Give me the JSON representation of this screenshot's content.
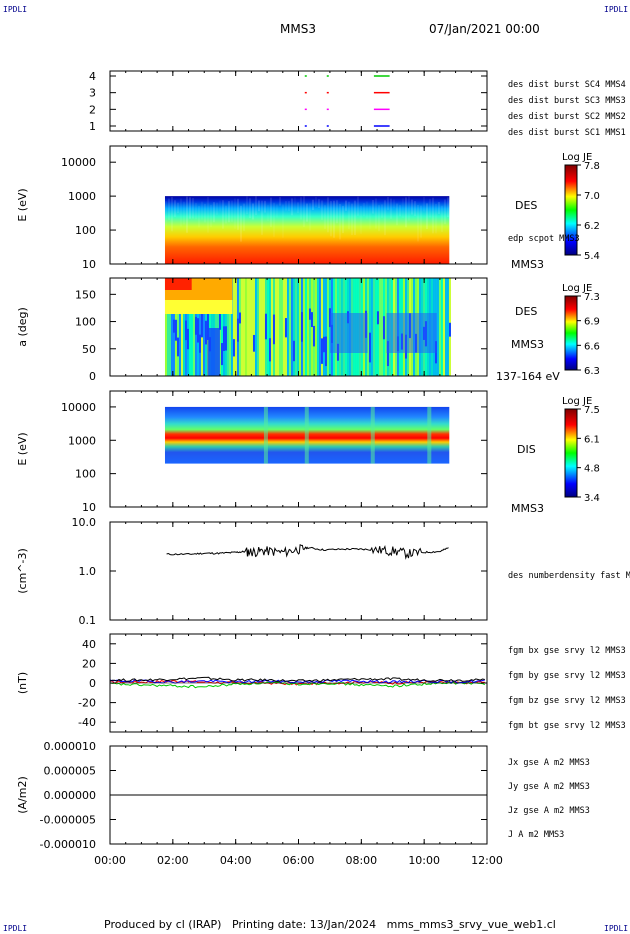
{
  "corner_labels": {
    "top_left": "IPDLI",
    "top_right": "IPDLI",
    "bottom_left": "IPDLI",
    "bottom_right": "IPDLI"
  },
  "header": {
    "spacecraft": "MMS3",
    "date": "07/Jan/2021 00:00"
  },
  "footer": "Produced by cl (IRAP)   Printing date: 13/Jan/2024   mms_mms3_srvy_vue_web1.cl",
  "x_axis": {
    "ticks": [
      "00:00",
      "02:00",
      "04:00",
      "06:00",
      "08:00",
      "10:00",
      "12:00"
    ],
    "range_hours": [
      0,
      12
    ]
  },
  "colors": {
    "red": "#ff0000",
    "green": "#00cc00",
    "blue": "#0000ff",
    "magenta": "#ff00ff",
    "black": "#000000"
  },
  "panels": {
    "burst": {
      "yticks": [
        "1",
        "2",
        "3",
        "4"
      ],
      "legend": [
        {
          "text": "des dist burst SC1 MMS1",
          "color": "#0000ff"
        },
        {
          "text": "des dist burst SC2 MMS2",
          "color": "#ff00ff"
        },
        {
          "text": "des dist burst SC3 MMS3",
          "color": "#ff0000"
        },
        {
          "text": "des dist burst SC4 MMS4",
          "color": "#00cc00"
        }
      ],
      "intervals_hours": [
        [
          6.2,
          6.25
        ],
        [
          6.9,
          6.95
        ],
        [
          8.4,
          8.9
        ]
      ]
    },
    "des_energy": {
      "ylabel": "E (eV)",
      "yticks": [
        "10",
        "100",
        "1000",
        "10000"
      ],
      "label": "DES",
      "label2": "edp scpot MMS3",
      "colorbar": {
        "title": "Log JE",
        "ticks": [
          "7.8",
          "7.0",
          "6.2",
          "5.4"
        ]
      },
      "time_coverage_hours": [
        1.75,
        10.8
      ]
    },
    "des_pitch": {
      "ylabel": "a (deg)",
      "yticks": [
        "0",
        "50",
        "100",
        "150"
      ],
      "label_top": "MMS3",
      "label": "DES",
      "label2": "MMS3",
      "label3": "137-164 eV",
      "colorbar": {
        "title": "Log JE",
        "ticks": [
          "7.3",
          "6.9",
          "6.6",
          "6.3"
        ]
      },
      "time_coverage_hours": [
        1.75,
        10.8
      ]
    },
    "dis_energy": {
      "ylabel": "E (eV)",
      "yticks": [
        "10",
        "100",
        "1000",
        "10000"
      ],
      "label": "DIS",
      "label2": "MMS3",
      "colorbar": {
        "title": "Log JE",
        "ticks": [
          "7.5",
          "6.1",
          "4.8",
          "3.4"
        ]
      },
      "time_coverage_hours": [
        1.75,
        10.8
      ]
    },
    "density": {
      "ylabel": "(cm^-3)",
      "yticks": [
        "0.1",
        "1.0",
        "10.0"
      ],
      "legend": [
        {
          "text": "des numberdensity fast M",
          "color": "#000000"
        }
      ]
    },
    "bfield": {
      "ylabel": "(nT)",
      "yticks": [
        "-40",
        "-20",
        "0",
        "20",
        "40"
      ],
      "legend": [
        {
          "text": "fgm bx gse srvy l2 MMS3",
          "color": "#ff0000"
        },
        {
          "text": "fgm by gse srvy l2 MMS3",
          "color": "#00cc00"
        },
        {
          "text": "fgm bz gse srvy l2 MMS3",
          "color": "#0000ff"
        },
        {
          "text": "fgm bt gse srvy l2 MMS3",
          "color": "#000000"
        }
      ]
    },
    "current": {
      "ylabel": "(A/m2)",
      "yticks": [
        "-0.000010",
        "-0.000005",
        "0.000000",
        "0.000005",
        "0.000010"
      ],
      "legend": [
        {
          "text": "Jx gse A m2 MMS3",
          "color": "#ff0000"
        },
        {
          "text": "Jy gse A m2 MMS3",
          "color": "#00cc00"
        },
        {
          "text": "Jz gse A m2 MMS3",
          "color": "#0000ff"
        },
        {
          "text": "J A m2 MMS3",
          "color": "#000000"
        }
      ]
    }
  },
  "chart_data": [
    {
      "type": "line",
      "title": "",
      "xlabel": "",
      "ylabel": "",
      "series": [
        {
          "name": "des dist burst SC1 MMS1",
          "level": 1
        },
        {
          "name": "des dist burst SC2 MMS2",
          "level": 2
        },
        {
          "name": "des dist burst SC3 MMS3",
          "level": 3
        },
        {
          "name": "des dist burst SC4 MMS4",
          "level": 4
        }
      ],
      "ylim": [
        0.7,
        4.3
      ],
      "xlim": [
        0,
        12
      ]
    },
    {
      "type": "heatmap",
      "ylabel": "E (eV)",
      "ylim": [
        10,
        30000
      ],
      "yscale": "log",
      "zlim": [
        5.4,
        7.8
      ],
      "xlim": [
        0,
        12
      ]
    },
    {
      "type": "heatmap",
      "ylabel": "a (deg)",
      "ylim": [
        0,
        180
      ],
      "zlim": [
        6.3,
        7.3
      ],
      "xlim": [
        0,
        12
      ]
    },
    {
      "type": "heatmap",
      "ylabel": "E (eV)",
      "ylim": [
        10,
        30000
      ],
      "yscale": "log",
      "zlim": [
        3.4,
        7.5
      ],
      "xlim": [
        0,
        12
      ]
    },
    {
      "type": "line",
      "ylabel": "(cm^-3)",
      "ylim": [
        0.1,
        10
      ],
      "yscale": "log",
      "xlim": [
        0,
        12
      ],
      "x": [
        1.8,
        2.5,
        3.0,
        3.5,
        4.0,
        4.3,
        4.6,
        5.0,
        5.5,
        6.0,
        6.3,
        6.8,
        7.5,
        8.0,
        8.5,
        9.0,
        9.5,
        10.0,
        10.5,
        10.8
      ],
      "y": [
        2.2,
        2.2,
        2.3,
        2.3,
        2.4,
        2.5,
        2.5,
        2.6,
        2.4,
        2.8,
        3.0,
        2.7,
        2.8,
        2.8,
        2.7,
        2.6,
        2.3,
        2.4,
        2.5,
        3.0
      ]
    },
    {
      "type": "line",
      "ylabel": "(nT)",
      "ylim": [
        -50,
        50
      ],
      "xlim": [
        0,
        12
      ],
      "x": [
        0,
        1,
        2,
        3,
        4,
        5,
        6,
        7,
        8,
        9,
        10,
        11,
        12
      ],
      "series": [
        {
          "name": "fgm bx gse srvy l2 MMS3",
          "values": [
            1,
            1,
            2,
            1,
            0,
            0,
            -1,
            0,
            1,
            0,
            1,
            0,
            1
          ]
        },
        {
          "name": "fgm by gse srvy l2 MMS3",
          "values": [
            -1,
            -2,
            -3,
            -4,
            -1,
            0,
            -1,
            0,
            -2,
            -3,
            -1,
            0,
            -1
          ]
        },
        {
          "name": "fgm bz gse srvy l2 MMS3",
          "values": [
            2,
            2,
            1,
            2,
            1,
            2,
            1,
            2,
            2,
            1,
            2,
            1,
            2
          ]
        },
        {
          "name": "fgm bt gse srvy l2 MMS3",
          "values": [
            3,
            3,
            4,
            5,
            3,
            3,
            2,
            3,
            4,
            4,
            3,
            3,
            3
          ]
        }
      ]
    },
    {
      "type": "line",
      "ylabel": "(A/m2)",
      "ylim": [
        -1e-05,
        1e-05
      ],
      "xlim": [
        0,
        12
      ],
      "x": [
        0,
        12
      ],
      "series": [
        {
          "name": "J A m2 MMS3",
          "values": [
            0,
            0
          ]
        }
      ]
    }
  ]
}
